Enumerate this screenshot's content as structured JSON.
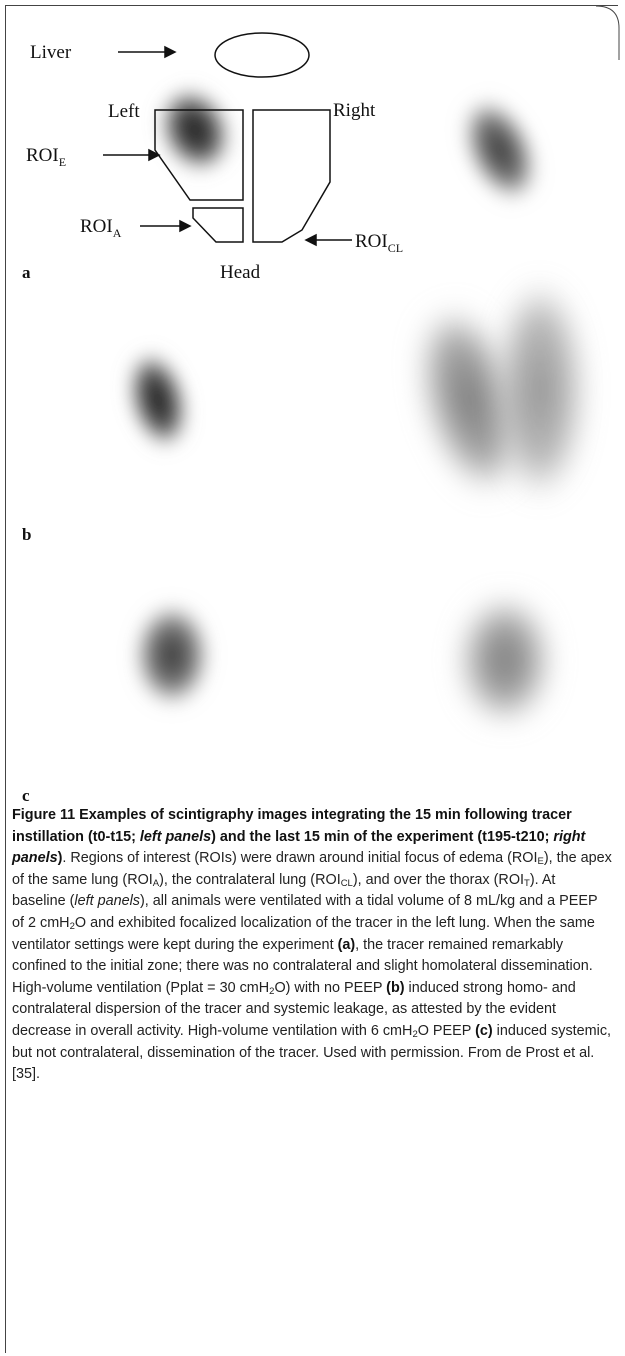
{
  "figure": {
    "labels": {
      "liver": "Liver",
      "left": "Left",
      "right": "Right",
      "head": "Head",
      "roi_e": {
        "main": "ROI",
        "sub": "E"
      },
      "roi_a": {
        "main": "ROI",
        "sub": "A"
      },
      "roi_cl": {
        "main": "ROI",
        "sub": "CL"
      }
    },
    "panels": [
      "a",
      "b",
      "c"
    ]
  },
  "caption": [
    "Figure 11 Examples of scintigraphy images integrating the 15 min following tracer instillation (t0-t15; ",
    "left panels",
    ") and the last 15 min of the experiment (t195-t210; ",
    "right panels",
    ")",
    ". Regions of interest (ROIs) were drawn around initial focus of edema (ROI",
    "E",
    "), the apex of the same lung (ROI",
    "A",
    "), the contralateral lung (ROI",
    "CL",
    "), and over the thorax (ROI",
    "T",
    "). At baseline (",
    "left panels",
    "), all animals were ventilated with a tidal volume of 8 mL/kg and a PEEP of 2 cmH",
    "2",
    "O and exhibited focalized localization of the tracer in the left lung. When the same ventilator settings were kept during the experiment ",
    "(a)",
    ", the tracer remained remarkably confined to the initial zone; there was no contralateral and slight homolateral dissemination. High-volume ventilation (Pplat = 30 cmH",
    "2",
    "O) with no PEEP ",
    "(b)",
    " induced strong homo- and contralateral dispersion of the tracer and systemic leakage, as attested by the evident decrease in overall activity. High-volume ventilation with 6 cmH",
    "2",
    "O PEEP ",
    "(c)",
    " induced systemic, but not contralateral, dissemination of the tracer. Used with permission. From de Prost et al. [35]."
  ]
}
